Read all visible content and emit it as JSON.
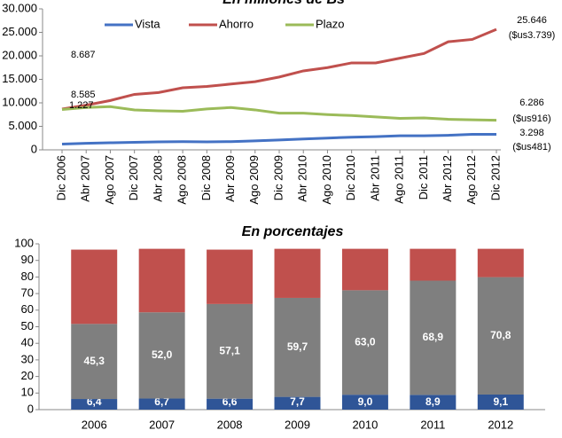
{
  "chart_data": [
    {
      "type": "line",
      "title": "En millones de Bs",
      "categories": [
        "Dic 2006",
        "Abr 2007",
        "Ago 2007",
        "Dic 2007",
        "Abr 2008",
        "Ago 2008",
        "Dic 2008",
        "Abr 2009",
        "Ago 2009",
        "Dic 2009",
        "Abr 2010",
        "Ago 2010",
        "Dic 2010",
        "Abr 2011",
        "Ago 2011",
        "Dic 2011",
        "Abr 2012",
        "Ago 2012",
        "Dic 2012"
      ],
      "series": [
        {
          "name": "Vista",
          "color": "#4472c4",
          "values": [
            1227,
            1400,
            1500,
            1600,
            1700,
            1750,
            1700,
            1750,
            1900,
            2100,
            2300,
            2500,
            2700,
            2800,
            3000,
            3000,
            3100,
            3300,
            3298
          ]
        },
        {
          "name": "Ahorro",
          "color": "#c0504d",
          "values": [
            8687,
            9500,
            10500,
            11800,
            12200,
            13200,
            13500,
            14000,
            14500,
            15500,
            16800,
            17500,
            18500,
            18500,
            19500,
            20500,
            23000,
            23500,
            25646
          ]
        },
        {
          "name": "Plazo",
          "color": "#9bbb59",
          "values": [
            8585,
            9000,
            9200,
            8500,
            8300,
            8200,
            8700,
            9000,
            8500,
            7800,
            7800,
            7500,
            7300,
            7000,
            6700,
            6800,
            6500,
            6400,
            6286
          ]
        }
      ],
      "ylim": [
        0,
        30000
      ],
      "yticks": [
        0,
        {
          "value": 5000,
          "label": "5.000"
        },
        {
          "value": 10000,
          "label": "10.000"
        },
        {
          "value": 15000,
          "label": "15.000"
        },
        {
          "value": 20000,
          "label": "20.000"
        },
        {
          "value": 25000,
          "label": "25.000"
        },
        {
          "value": 30000,
          "label": "30.000"
        }
      ],
      "legend": "top",
      "annotations": [
        "8.687",
        "8.585",
        "1.227",
        "25.646",
        "($us3.739)",
        "6.286",
        "($us916)",
        "3.298",
        "($us481)"
      ]
    },
    {
      "type": "bar",
      "stacked": true,
      "title": "En porcentajes",
      "categories": [
        "2006",
        "2007",
        "2008",
        "2009",
        "2010",
        "2011",
        "2012"
      ],
      "series": [
        {
          "color": "#2f5597",
          "values": [
            6.4,
            6.7,
            6.6,
            7.7,
            9.0,
            8.9,
            9.1
          ],
          "value_labels": [
            "6,4",
            "6,7",
            "6,6",
            "7,7",
            "9,0",
            "8,9",
            "9,1"
          ]
        },
        {
          "color": "#7f7f7f",
          "values": [
            45.3,
            52.0,
            57.1,
            59.7,
            63.0,
            68.9,
            70.8
          ],
          "value_labels": [
            "45,3",
            "52,0",
            "57,1",
            "59,7",
            "63,0",
            "68,9",
            "70,8"
          ]
        },
        {
          "color": "#c0504d",
          "values": [
            44.8,
            38.3,
            32.8,
            29.6,
            25.0,
            19.2,
            17.1
          ]
        }
      ],
      "ylim": [
        0,
        100
      ],
      "yticks": [
        0,
        10,
        20,
        30,
        40,
        50,
        60,
        70,
        80,
        90,
        100
      ]
    }
  ]
}
